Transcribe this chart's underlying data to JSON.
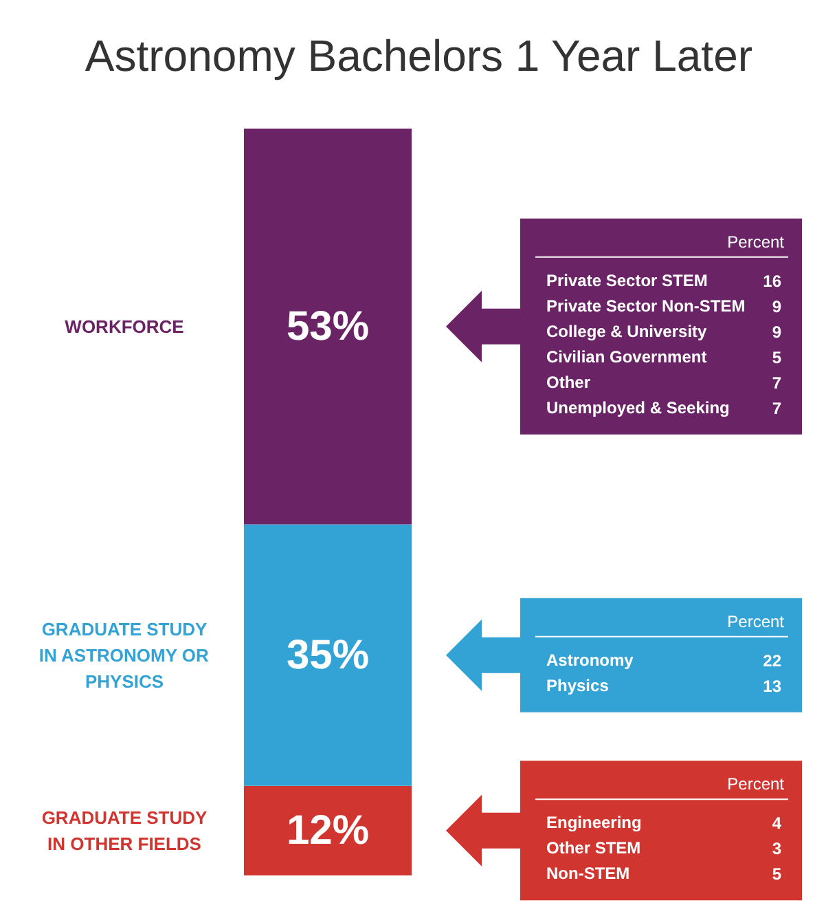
{
  "chart_data": [
    {
      "type": "bar",
      "title": "Astronomy Bachelors 1 Year Later",
      "categories": [
        null
      ],
      "stacked": true,
      "series": [
        {
          "name": "GRADUATE STUDY IN OTHER FIELDS",
          "color": "#d03530",
          "values": [
            12
          ],
          "value_labels": [
            "12%"
          ]
        },
        {
          "name": "GRADUATE STUDY IN ASTRONOMY OR PHYSICS",
          "color": "#33a3d6",
          "values": [
            35
          ],
          "value_labels": [
            "35%"
          ]
        },
        {
          "name": "WORKFORCE",
          "color": "#6a2466",
          "values": [
            53
          ],
          "value_labels": [
            "53%"
          ]
        }
      ]
    },
    {
      "type": "other",
      "title": "Percent",
      "categories": [
        "Private Sector STEM",
        "Private Sector Non-STEM",
        "College & University",
        "Civilian Government",
        "Other",
        "Unemployed & Seeking"
      ],
      "values": [
        16,
        9,
        9,
        5,
        7,
        7
      ],
      "data_labels": true,
      "color": "#6a2466"
    },
    {
      "type": "other",
      "title": "Percent",
      "categories": [
        "Astronomy",
        "Physics"
      ],
      "values": [
        22,
        13
      ],
      "data_labels": true,
      "color": "#33a3d6"
    },
    {
      "type": "other",
      "title": "Percent",
      "categories": [
        "Engineering",
        "Other STEM",
        "Non-STEM"
      ],
      "values": [
        4,
        3,
        5
      ],
      "data_labels": true,
      "color": "#d03530"
    }
  ]
}
